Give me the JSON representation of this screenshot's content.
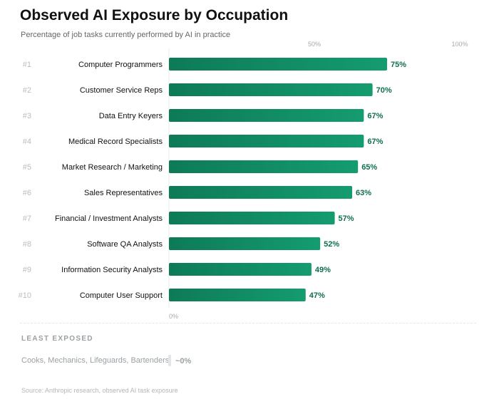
{
  "header": {
    "title": "Observed AI Exposure by Occupation",
    "subtitle": "Percentage of job tasks currently performed by AI in practice"
  },
  "colors": {
    "bar_start": "#0e7a57",
    "bar_end": "#149c70",
    "value_text": "#0e6e4e",
    "rank_text": "#b8bdc0",
    "tick_text": "#a5aaad",
    "axis_line": "#e8ebed"
  },
  "chart_data": {
    "type": "bar",
    "orientation": "horizontal",
    "title": "Observed AI Exposure by Occupation",
    "subtitle": "Percentage of job tasks currently performed by AI in practice",
    "xlim": [
      0,
      100
    ],
    "ticks": [
      {
        "value": 0,
        "label": "0%",
        "position": "bottom"
      },
      {
        "value": 50,
        "label": "50%",
        "position": "top"
      },
      {
        "value": 100,
        "label": "100%",
        "position": "top"
      }
    ],
    "ranks": [
      "#1",
      "#2",
      "#3",
      "#4",
      "#5",
      "#6",
      "#7",
      "#8",
      "#9",
      "#10"
    ],
    "categories": [
      "Computer Programmers",
      "Customer Service Reps",
      "Data Entry Keyers",
      "Medical Record Specialists",
      "Market Research / Marketing",
      "Sales Representatives",
      "Financial / Investment Analysts",
      "Software QA Analysts",
      "Information Security Analysts",
      "Computer User Support"
    ],
    "values": [
      75,
      70,
      67,
      67,
      65,
      63,
      57,
      52,
      49,
      47
    ],
    "value_labels": [
      "75%",
      "70%",
      "67%",
      "67%",
      "65%",
      "63%",
      "57%",
      "52%",
      "49%",
      "47%"
    ]
  },
  "least_exposed": {
    "title": "LEAST EXPOSED",
    "label": "Cooks, Mechanics, Lifeguards, Bartenders",
    "value_label": "~0%"
  },
  "footer": {
    "source": "Source: Anthropic research, observed AI task exposure"
  }
}
